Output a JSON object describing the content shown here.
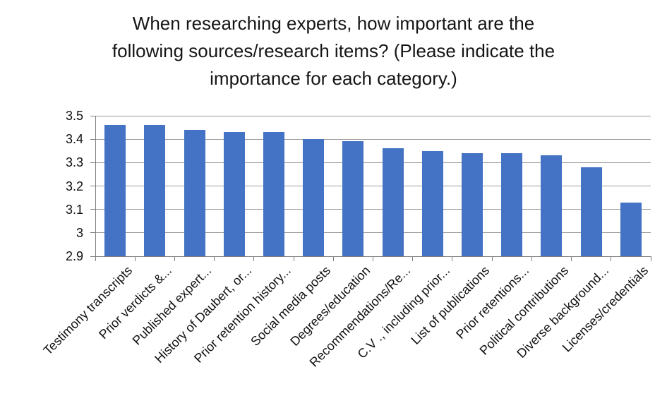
{
  "page": {
    "background": "#FFFFFF"
  },
  "chart_data": {
    "type": "bar",
    "title": "When researching experts, how important are the following sources/research items?  (Please indicate the importance for each category.)",
    "title_lines": [
      "When researching experts, how important are the",
      "following sources/research items?  (Please indicate the",
      "importance for each category.)"
    ],
    "categories": [
      "Testimony transcripts",
      "Prior verdicts &...",
      "Published expert...",
      "History of Daubert, or...",
      "Prior retention history...",
      "Social media posts",
      "Degrees/education",
      "Recommendations/Re...",
      "C.V ., including prior...",
      "List of publications",
      "Prior retentions...",
      "Political contributions",
      "Diverse background...",
      "Licenses/credentials"
    ],
    "values": [
      3.46,
      3.46,
      3.44,
      3.43,
      3.43,
      3.4,
      3.39,
      3.36,
      3.35,
      3.34,
      3.34,
      3.33,
      3.28,
      3.13
    ],
    "xlabel": "",
    "ylabel": "",
    "ylim": [
      2.9,
      3.5
    ],
    "ytick_labels": [
      "3.5",
      "3.4",
      "3.3",
      "3.2",
      "3.1",
      "3",
      "2.9"
    ],
    "grid": true,
    "legend": "none",
    "bar_color": "#4472C4",
    "gridline_color": "#9A9A9A",
    "axis_color": "#7F7F7F",
    "text_color": "#101010",
    "title_color": "#151515"
  }
}
